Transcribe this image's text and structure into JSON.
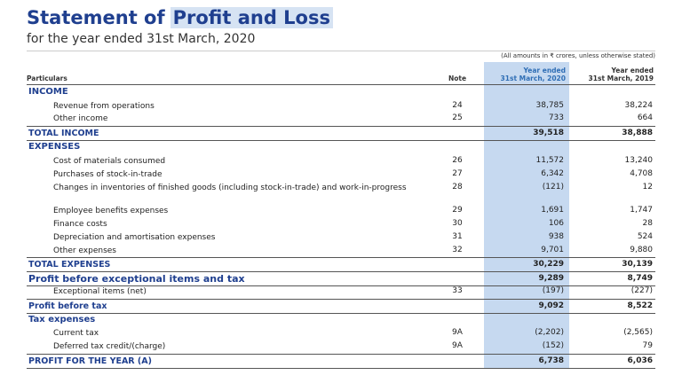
{
  "header": {
    "title_start": "Statement of",
    "title_highlight": "Profit and Loss",
    "subtitle": "for the year ended 31st March, 2020"
  },
  "table": {
    "unit_note": "(All amounts in ₹ crores, unless otherwise stated)",
    "columns": {
      "particulars": "Particulars",
      "note": "Note",
      "fy2020": [
        "Year ended",
        "31st March, 2020"
      ],
      "fy2019": [
        "Year ended",
        "31st March, 2019"
      ]
    },
    "rows": [
      {
        "label": "INCOME"
      },
      {
        "label": "Revenue from operations",
        "note": "24",
        "fy2020": "38,785",
        "fy2019": "38,224"
      },
      {
        "label": "Other income",
        "note": "25",
        "fy2020": "733",
        "fy2019": "664"
      },
      {
        "label": "TOTAL INCOME",
        "fy2020": "39,518",
        "fy2019": "38,888"
      },
      {
        "label": "EXPENSES"
      },
      {
        "label": "Cost of materials consumed",
        "note": "26",
        "fy2020": "11,572",
        "fy2019": "13,240"
      },
      {
        "label": "Purchases of stock-in-trade",
        "note": "27",
        "fy2020": "6,342",
        "fy2019": "4,708"
      },
      {
        "label": "Changes in inventories of finished goods (including stock-in-trade) and work-in-progress",
        "note": "28",
        "fy2020": "(121)",
        "fy2019": "12"
      },
      {
        "label": "Employee benefits expenses",
        "note": "29",
        "fy2020": "1,691",
        "fy2019": "1,747"
      },
      {
        "label": "Finance costs",
        "note": "30",
        "fy2020": "106",
        "fy2019": "28"
      },
      {
        "label": "Depreciation and amortisation expenses",
        "note": "31",
        "fy2020": "938",
        "fy2019": "524"
      },
      {
        "label": "Other expenses",
        "note": "32",
        "fy2020": "9,701",
        "fy2019": "9,880"
      },
      {
        "label": "TOTAL EXPENSES",
        "fy2020": "30,229",
        "fy2019": "30,139"
      },
      {
        "label": "Profit before exceptional items and tax",
        "fy2020": "9,289",
        "fy2019": "8,749"
      },
      {
        "label": "Exceptional items (net)",
        "note": "33",
        "fy2020": "(197)",
        "fy2019": "(227)"
      },
      {
        "label": "Profit before tax",
        "fy2020": "9,092",
        "fy2019": "8,522"
      },
      {
        "label": "Tax expenses"
      },
      {
        "label": "Current tax",
        "note": "9A",
        "fy2020": "(2,202)",
        "fy2019": "(2,565)"
      },
      {
        "label": "Deferred tax credit/(charge)",
        "note": "9A",
        "fy2020": "(152)",
        "fy2019": "79"
      },
      {
        "label": "PROFIT FOR THE YEAR (A)",
        "fy2020": "6,738",
        "fy2019": "6,036"
      }
    ]
  }
}
